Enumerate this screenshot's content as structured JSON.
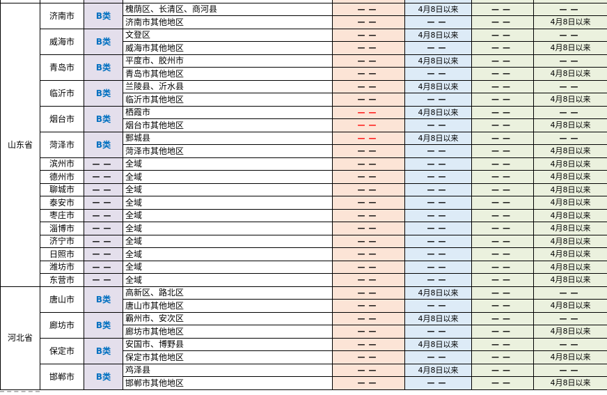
{
  "colors": {
    "border": "#000000",
    "category_bg": "#E4DFEC",
    "col5_bg": "#FCE4D6",
    "col6_bg": "#DDEBF7",
    "col7_bg": "#EBF1DE",
    "col8_bg": "#EBF1DE",
    "category_text_blue": "#0070C0",
    "red_dash": "#FF0000"
  },
  "labels": {
    "dash": "——",
    "since_date": "4月8日以来",
    "b_class": "B类",
    "full_area": "全域"
  },
  "table": {
    "provinces": [
      {
        "name": "山东省",
        "cities": [
          {
            "name": "济南市",
            "category": "B类",
            "blue": true,
            "rows": [
              {
                "region": "槐荫区、长清区、商河县",
                "values": [
                  "——",
                  "4月8日以来",
                  "——",
                  "——"
                ]
              },
              {
                "region": "济南市其他地区",
                "values": [
                  "——",
                  "——",
                  "——",
                  "4月8日以来"
                ]
              }
            ]
          },
          {
            "name": "威海市",
            "category": "B类",
            "blue": true,
            "rows": [
              {
                "region": "文登区",
                "values": [
                  "——",
                  "4月8日以来",
                  "——",
                  "——"
                ]
              },
              {
                "region": "威海市其他地区",
                "values": [
                  "——",
                  "——",
                  "——",
                  "4月8日以来"
                ]
              }
            ]
          },
          {
            "name": "青岛市",
            "category": "B类",
            "blue": true,
            "rows": [
              {
                "region": "平度市、胶州市",
                "values": [
                  "——",
                  "4月8日以来",
                  "——",
                  "——"
                ]
              },
              {
                "region": "青岛市其他地区",
                "values": [
                  "——",
                  "——",
                  "——",
                  "4月8日以来"
                ]
              }
            ]
          },
          {
            "name": "临沂市",
            "category": "B类",
            "blue": true,
            "rows": [
              {
                "region": "兰陵县、沂水县",
                "values": [
                  "——",
                  "4月8日以来",
                  "——",
                  "——"
                ]
              },
              {
                "region": "临沂市其他地区",
                "values": [
                  "——",
                  "——",
                  "——",
                  "4月8日以来"
                ]
              }
            ]
          },
          {
            "name": "烟台市",
            "category": "B类",
            "blue": true,
            "rows": [
              {
                "region": "栖霞市",
                "values": [
                  "——",
                  "4月8日以来",
                  "——",
                  "——"
                ],
                "red": [
                  0
                ]
              },
              {
                "region": "烟台市其他地区",
                "values": [
                  "——",
                  "——",
                  "——",
                  "4月8日以来"
                ],
                "red": [
                  0
                ]
              }
            ]
          },
          {
            "name": "菏泽市",
            "category": "B类",
            "blue": true,
            "rows": [
              {
                "region": "鄄城县",
                "values": [
                  "——",
                  "4月8日以来",
                  "——",
                  "——"
                ],
                "red": [
                  0
                ]
              },
              {
                "region": "菏泽市其他地区",
                "values": [
                  "——",
                  "——",
                  "——",
                  "4月8日以来"
                ]
              }
            ]
          },
          {
            "name": "滨州市",
            "category": "——",
            "blue": false,
            "rows": [
              {
                "region": "全域",
                "values": [
                  "——",
                  "——",
                  "——",
                  "4月8日以来"
                ]
              }
            ]
          },
          {
            "name": "德州市",
            "category": "——",
            "blue": false,
            "rows": [
              {
                "region": "全域",
                "values": [
                  "——",
                  "——",
                  "——",
                  "4月8日以来"
                ]
              }
            ]
          },
          {
            "name": "聊城市",
            "category": "——",
            "blue": false,
            "rows": [
              {
                "region": "全域",
                "values": [
                  "——",
                  "——",
                  "——",
                  "4月8日以来"
                ]
              }
            ]
          },
          {
            "name": "泰安市",
            "category": "——",
            "blue": false,
            "rows": [
              {
                "region": "全域",
                "values": [
                  "——",
                  "——",
                  "——",
                  "4月8日以来"
                ]
              }
            ]
          },
          {
            "name": "枣庄市",
            "category": "——",
            "blue": false,
            "rows": [
              {
                "region": "全域",
                "values": [
                  "——",
                  "——",
                  "——",
                  "4月8日以来"
                ]
              }
            ]
          },
          {
            "name": "淄博市",
            "category": "——",
            "blue": false,
            "rows": [
              {
                "region": "全域",
                "values": [
                  "——",
                  "——",
                  "——",
                  "4月8日以来"
                ]
              }
            ]
          },
          {
            "name": "济宁市",
            "category": "——",
            "blue": false,
            "rows": [
              {
                "region": "全域",
                "values": [
                  "——",
                  "——",
                  "——",
                  "4月8日以来"
                ]
              }
            ]
          },
          {
            "name": "日照市",
            "category": "——",
            "blue": false,
            "rows": [
              {
                "region": "全域",
                "values": [
                  "——",
                  "——",
                  "——",
                  "4月8日以来"
                ]
              }
            ]
          },
          {
            "name": "潍坊市",
            "category": "——",
            "blue": false,
            "rows": [
              {
                "region": "全域",
                "values": [
                  "——",
                  "——",
                  "——",
                  "4月8日以来"
                ]
              }
            ]
          },
          {
            "name": "东营市",
            "category": "——",
            "blue": false,
            "rows": [
              {
                "region": "全域",
                "values": [
                  "——",
                  "——",
                  "——",
                  "4月8日以来"
                ]
              }
            ]
          }
        ]
      },
      {
        "name": "河北省",
        "cities": [
          {
            "name": "唐山市",
            "category": "B类",
            "blue": true,
            "rows": [
              {
                "region": "高新区、路北区",
                "values": [
                  "——",
                  "4月8日以来",
                  "——",
                  "——"
                ]
              },
              {
                "region": "唐山市其他地区",
                "values": [
                  "——",
                  "——",
                  "——",
                  "4月8日以来"
                ]
              }
            ]
          },
          {
            "name": "廊坊市",
            "category": "B类",
            "blue": true,
            "rows": [
              {
                "region": "霸州市、安次区",
                "values": [
                  "——",
                  "4月8日以来",
                  "——",
                  "——"
                ]
              },
              {
                "region": "廊坊市其他地区",
                "values": [
                  "——",
                  "——",
                  "——",
                  "4月8日以来"
                ]
              }
            ]
          },
          {
            "name": "保定市",
            "category": "B类",
            "blue": true,
            "rows": [
              {
                "region": "安国市、博野县",
                "values": [
                  "——",
                  "4月8日以来",
                  "——",
                  "——"
                ]
              },
              {
                "region": "保定市其他地区",
                "values": [
                  "——",
                  "——",
                  "——",
                  "4月8日以来"
                ]
              }
            ]
          },
          {
            "name": "邯郸市",
            "category": "B类",
            "blue": true,
            "rows": [
              {
                "region": "鸡泽县",
                "values": [
                  "——",
                  "4月8日以来",
                  "——",
                  "——"
                ]
              },
              {
                "region": "邯郸市其他地区",
                "values": [
                  "——",
                  "——",
                  "——",
                  "4月8日以来"
                ]
              }
            ]
          }
        ]
      }
    ]
  }
}
